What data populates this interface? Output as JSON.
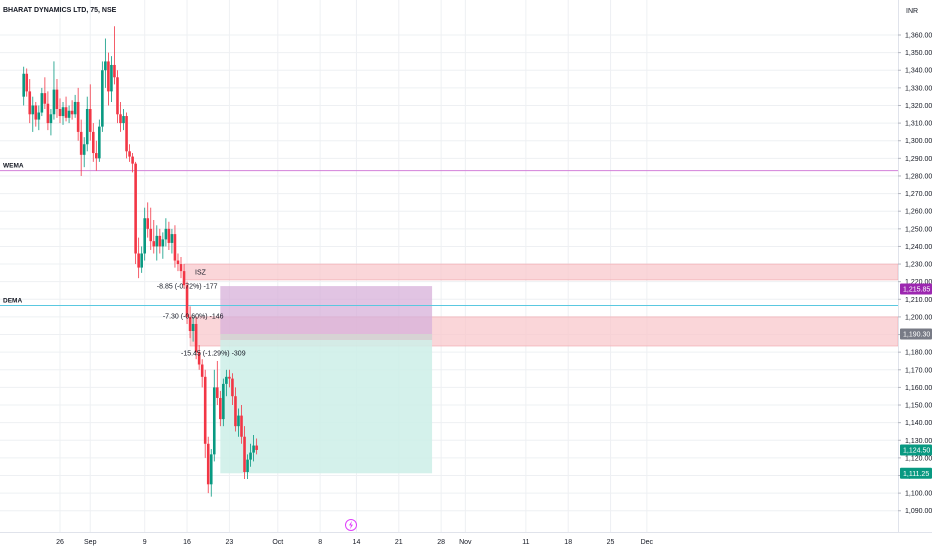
{
  "header": {
    "title": "BHARAT DYNAMICS LTD, 75, NSE",
    "currency": "INR"
  },
  "colors": {
    "up": "#089981",
    "down": "#f23645",
    "wema": "#d281d9",
    "dema": "#5ac8e0",
    "zone_fill": "#f8c8cc",
    "zone_stroke": "#f0a4ab",
    "stop_fill": "#d7b0da",
    "target_fill": "#cdeee7",
    "entry_fill": "#d3d3d3",
    "grid": "#eef0f3"
  },
  "chart_data": {
    "type": "candlestick",
    "title": "BHARAT DYNAMICS LTD, 75, NSE",
    "ylim": [
      1083,
      1370
    ],
    "yticks": [
      1360,
      1350,
      1340,
      1330,
      1320,
      1310,
      1300,
      1290,
      1280,
      1270,
      1260,
      1250,
      1240,
      1230,
      1220,
      1210,
      1200,
      1190,
      1180,
      1170,
      1160,
      1150,
      1140,
      1130,
      1120,
      1110,
      1100,
      1090
    ],
    "ytick_labels": [
      "1,360.00",
      "1,350.00",
      "1,340.00",
      "1,330.00",
      "1,320.00",
      "1,310.00",
      "1,300.00",
      "1,290.00",
      "1,280.00",
      "1,270.00",
      "1,260.00",
      "1,250.00",
      "1,240.00",
      "1,230.00",
      "1,220.00",
      "1,210.00",
      "1,200.00",
      "1,190.00",
      "1,180.00",
      "1,170.00",
      "1,160.00",
      "1,150.00",
      "1,140.00",
      "1,130.00",
      "1,120.00",
      "1,110.00",
      "1,100.00",
      "1,090.00"
    ],
    "xticks": [
      {
        "label": "26",
        "day": 26
      },
      {
        "label": "Sep",
        "day": 31
      },
      {
        "label": "9",
        "day": 40
      },
      {
        "label": "16",
        "day": 47
      },
      {
        "label": "23",
        "day": 54
      },
      {
        "label": "Oct",
        "day": 62
      },
      {
        "label": "8",
        "day": 69
      },
      {
        "label": "14",
        "day": 75
      },
      {
        "label": "21",
        "day": 82
      },
      {
        "label": "28",
        "day": 89
      },
      {
        "label": "Nov",
        "day": 93
      },
      {
        "label": "11",
        "day": 103
      },
      {
        "label": "18",
        "day": 110
      },
      {
        "label": "25",
        "day": 117
      },
      {
        "label": "Dec",
        "day": 123
      }
    ],
    "day_reference": "August 2024",
    "candles": [
      {
        "d": 20.0,
        "o": 1325,
        "h": 1342,
        "l": 1320,
        "c": 1338
      },
      {
        "d": 20.5,
        "o": 1338,
        "h": 1341,
        "l": 1325,
        "c": 1328
      },
      {
        "d": 21.0,
        "o": 1328,
        "h": 1335,
        "l": 1310,
        "c": 1315
      },
      {
        "d": 21.5,
        "o": 1315,
        "h": 1325,
        "l": 1305,
        "c": 1320
      },
      {
        "d": 22.0,
        "o": 1320,
        "h": 1322,
        "l": 1308,
        "c": 1312
      },
      {
        "d": 22.5,
        "o": 1312,
        "h": 1320,
        "l": 1306,
        "c": 1316
      },
      {
        "d": 23.0,
        "o": 1316,
        "h": 1330,
        "l": 1314,
        "c": 1327
      },
      {
        "d": 23.5,
        "o": 1327,
        "h": 1336,
        "l": 1318,
        "c": 1321
      },
      {
        "d": 24.0,
        "o": 1321,
        "h": 1328,
        "l": 1306,
        "c": 1310
      },
      {
        "d": 24.5,
        "o": 1310,
        "h": 1318,
        "l": 1303,
        "c": 1315
      },
      {
        "d": 25.0,
        "o": 1315,
        "h": 1345,
        "l": 1312,
        "c": 1329
      },
      {
        "d": 25.5,
        "o": 1329,
        "h": 1335,
        "l": 1313,
        "c": 1318
      },
      {
        "d": 26.0,
        "o": 1318,
        "h": 1324,
        "l": 1310,
        "c": 1314
      },
      {
        "d": 26.5,
        "o": 1314,
        "h": 1322,
        "l": 1309,
        "c": 1319
      },
      {
        "d": 27.0,
        "o": 1319,
        "h": 1325,
        "l": 1311,
        "c": 1313
      },
      {
        "d": 27.5,
        "o": 1313,
        "h": 1320,
        "l": 1310,
        "c": 1317
      },
      {
        "d": 28.0,
        "o": 1317,
        "h": 1323,
        "l": 1312,
        "c": 1315
      },
      {
        "d": 28.5,
        "o": 1315,
        "h": 1326,
        "l": 1313,
        "c": 1322
      },
      {
        "d": 29.0,
        "o": 1322,
        "h": 1330,
        "l": 1300,
        "c": 1305
      },
      {
        "d": 29.5,
        "o": 1305,
        "h": 1312,
        "l": 1280,
        "c": 1292
      },
      {
        "d": 30.0,
        "o": 1292,
        "h": 1302,
        "l": 1285,
        "c": 1298
      },
      {
        "d": 30.5,
        "o": 1298,
        "h": 1325,
        "l": 1294,
        "c": 1318
      },
      {
        "d": 31.0,
        "o": 1318,
        "h": 1332,
        "l": 1300,
        "c": 1305
      },
      {
        "d": 31.5,
        "o": 1305,
        "h": 1310,
        "l": 1288,
        "c": 1293
      },
      {
        "d": 32.0,
        "o": 1293,
        "h": 1300,
        "l": 1283,
        "c": 1290
      },
      {
        "d": 32.5,
        "o": 1290,
        "h": 1312,
        "l": 1288,
        "c": 1308
      },
      {
        "d": 33.0,
        "o": 1308,
        "h": 1345,
        "l": 1305,
        "c": 1340
      },
      {
        "d": 33.5,
        "o": 1340,
        "h": 1358,
        "l": 1330,
        "c": 1345
      },
      {
        "d": 34.0,
        "o": 1345,
        "h": 1350,
        "l": 1320,
        "c": 1328
      },
      {
        "d": 34.5,
        "o": 1328,
        "h": 1348,
        "l": 1322,
        "c": 1343
      },
      {
        "d": 35.0,
        "o": 1343,
        "h": 1365,
        "l": 1332,
        "c": 1336
      },
      {
        "d": 35.5,
        "o": 1336,
        "h": 1340,
        "l": 1310,
        "c": 1315
      },
      {
        "d": 36.0,
        "o": 1315,
        "h": 1322,
        "l": 1305,
        "c": 1310
      },
      {
        "d": 36.5,
        "o": 1310,
        "h": 1318,
        "l": 1306,
        "c": 1314
      },
      {
        "d": 37.0,
        "o": 1314,
        "h": 1316,
        "l": 1290,
        "c": 1294
      },
      {
        "d": 37.5,
        "o": 1294,
        "h": 1298,
        "l": 1288,
        "c": 1291
      },
      {
        "d": 38.0,
        "o": 1291,
        "h": 1293,
        "l": 1282,
        "c": 1287
      },
      {
        "d": 38.5,
        "o": 1287,
        "h": 1288,
        "l": 1230,
        "c": 1236
      },
      {
        "d": 39.0,
        "o": 1236,
        "h": 1245,
        "l": 1222,
        "c": 1228
      },
      {
        "d": 39.5,
        "o": 1228,
        "h": 1240,
        "l": 1225,
        "c": 1236
      },
      {
        "d": 40.0,
        "o": 1236,
        "h": 1262,
        "l": 1232,
        "c": 1256
      },
      {
        "d": 40.5,
        "o": 1256,
        "h": 1265,
        "l": 1245,
        "c": 1250
      },
      {
        "d": 41.0,
        "o": 1250,
        "h": 1262,
        "l": 1238,
        "c": 1243
      },
      {
        "d": 41.5,
        "o": 1243,
        "h": 1255,
        "l": 1236,
        "c": 1240
      },
      {
        "d": 42.0,
        "o": 1240,
        "h": 1252,
        "l": 1232,
        "c": 1246
      },
      {
        "d": 42.5,
        "o": 1246,
        "h": 1250,
        "l": 1236,
        "c": 1240
      },
      {
        "d": 43.0,
        "o": 1240,
        "h": 1248,
        "l": 1233,
        "c": 1244
      },
      {
        "d": 43.5,
        "o": 1244,
        "h": 1256,
        "l": 1240,
        "c": 1250
      },
      {
        "d": 44.0,
        "o": 1250,
        "h": 1254,
        "l": 1238,
        "c": 1242
      },
      {
        "d": 44.5,
        "o": 1242,
        "h": 1250,
        "l": 1236,
        "c": 1247
      },
      {
        "d": 45.0,
        "o": 1247,
        "h": 1252,
        "l": 1228,
        "c": 1232
      },
      {
        "d": 45.5,
        "o": 1232,
        "h": 1236,
        "l": 1226,
        "c": 1230
      },
      {
        "d": 46.0,
        "o": 1230,
        "h": 1234,
        "l": 1222,
        "c": 1226
      },
      {
        "d": 46.5,
        "o": 1226,
        "h": 1230,
        "l": 1216,
        "c": 1218
      },
      {
        "d": 47.0,
        "o": 1218,
        "h": 1220,
        "l": 1196,
        "c": 1200
      },
      {
        "d": 47.5,
        "o": 1200,
        "h": 1206,
        "l": 1188,
        "c": 1192
      },
      {
        "d": 48.0,
        "o": 1192,
        "h": 1200,
        "l": 1186,
        "c": 1196
      },
      {
        "d": 48.5,
        "o": 1196,
        "h": 1200,
        "l": 1176,
        "c": 1180
      },
      {
        "d": 49.0,
        "o": 1180,
        "h": 1184,
        "l": 1170,
        "c": 1173
      },
      {
        "d": 49.5,
        "o": 1173,
        "h": 1176,
        "l": 1160,
        "c": 1166
      },
      {
        "d": 50.0,
        "o": 1166,
        "h": 1170,
        "l": 1120,
        "c": 1128
      },
      {
        "d": 50.5,
        "o": 1128,
        "h": 1132,
        "l": 1100,
        "c": 1105
      },
      {
        "d": 51.0,
        "o": 1105,
        "h": 1125,
        "l": 1098,
        "c": 1122
      },
      {
        "d": 51.5,
        "o": 1122,
        "h": 1170,
        "l": 1118,
        "c": 1160
      },
      {
        "d": 52.0,
        "o": 1160,
        "h": 1175,
        "l": 1150,
        "c": 1154
      },
      {
        "d": 52.5,
        "o": 1154,
        "h": 1158,
        "l": 1138,
        "c": 1142
      },
      {
        "d": 53.0,
        "o": 1142,
        "h": 1165,
        "l": 1138,
        "c": 1162
      },
      {
        "d": 53.5,
        "o": 1162,
        "h": 1170,
        "l": 1155,
        "c": 1166
      },
      {
        "d": 54.0,
        "o": 1166,
        "h": 1170,
        "l": 1160,
        "c": 1165
      },
      {
        "d": 54.5,
        "o": 1165,
        "h": 1168,
        "l": 1150,
        "c": 1155
      },
      {
        "d": 55.0,
        "o": 1155,
        "h": 1160,
        "l": 1135,
        "c": 1138
      },
      {
        "d": 55.5,
        "o": 1138,
        "h": 1148,
        "l": 1132,
        "c": 1144
      },
      {
        "d": 56.0,
        "o": 1144,
        "h": 1150,
        "l": 1128,
        "c": 1132
      },
      {
        "d": 56.5,
        "o": 1132,
        "h": 1138,
        "l": 1108,
        "c": 1112
      },
      {
        "d": 57.0,
        "o": 1112,
        "h": 1122,
        "l": 1108,
        "c": 1119
      },
      {
        "d": 57.5,
        "o": 1119,
        "h": 1128,
        "l": 1115,
        "c": 1123
      },
      {
        "d": 58.0,
        "o": 1123,
        "h": 1133,
        "l": 1118,
        "c": 1127
      },
      {
        "d": 58.5,
        "o": 1127,
        "h": 1131,
        "l": 1122,
        "c": 1124.5
      }
    ],
    "indicators": [
      {
        "name": "WEMA",
        "value": 1283
      },
      {
        "name": "DEMA",
        "value": 1206.5
      }
    ],
    "zones": [
      {
        "label": "ISZ",
        "from_day": 46.5,
        "top": 1230,
        "bottom": 1221
      },
      {
        "label": "",
        "from_day": 47.5,
        "top": 1200,
        "bottom": 1183.5
      }
    ],
    "position": {
      "type": "short",
      "from_day": 52.5,
      "to_day": 87.5,
      "stop": 1215.85,
      "entry": 1190.3,
      "target": 1111.25,
      "upper_bound": 1217.5
    },
    "annotations": [
      {
        "text": "-8.85 (-0.72%) -177",
        "day": 42.0,
        "value": 1216
      },
      {
        "text": "-7.30 (-0.60%) -146",
        "day": 43.0,
        "value": 1199
      },
      {
        "text": "-15.45 (-1.29%) -309",
        "day": 46.0,
        "value": 1178
      }
    ],
    "price_badges": [
      {
        "value": 1215.85,
        "label": "1,215.85",
        "color": "#9c27b0"
      },
      {
        "value": 1190.3,
        "label": "1,190.30",
        "color": "#787b86"
      },
      {
        "value": 1124.5,
        "label": "1,124.50",
        "color": "#089981"
      },
      {
        "value": 1111.25,
        "label": "1,111.25",
        "color": "#089981"
      }
    ]
  }
}
